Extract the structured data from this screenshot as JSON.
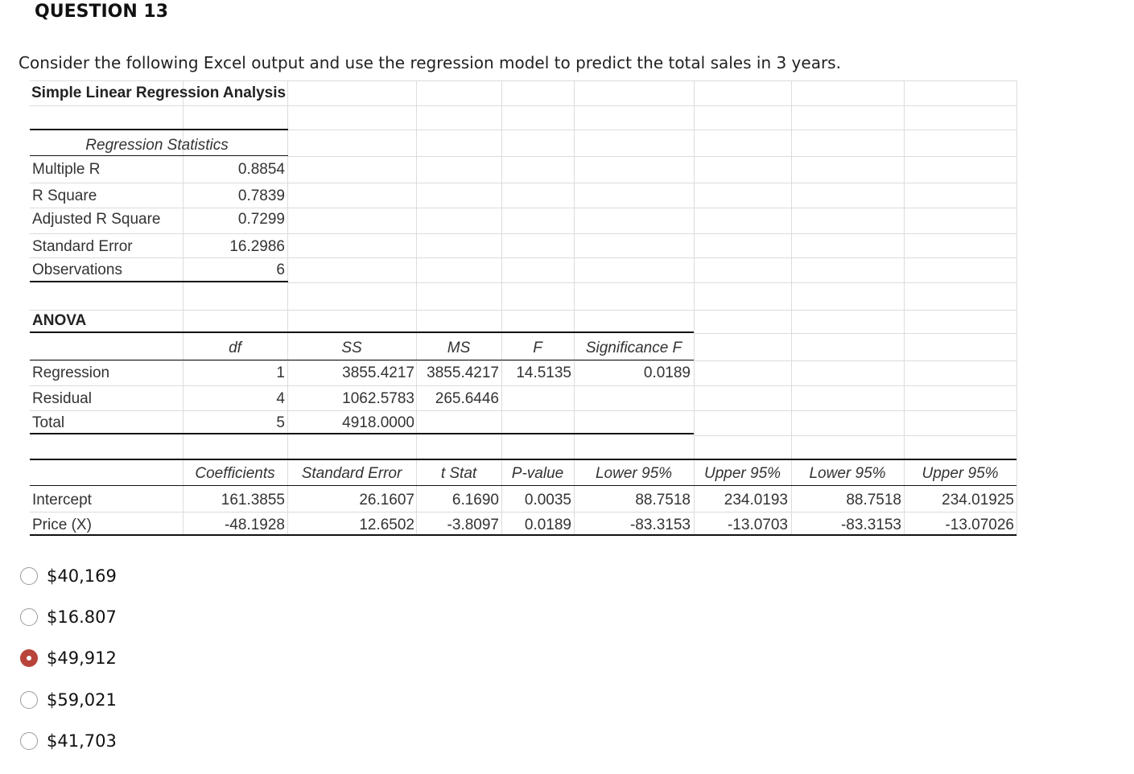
{
  "question": {
    "title": "QUESTION 13",
    "prompt": "Consider the following Excel output and use the regression model to predict the total sales in 3 years."
  },
  "sheet": {
    "title": "Simple Linear Regression Analysis",
    "regression_statistics": {
      "header": "Regression Statistics",
      "rows": [
        {
          "label": "Multiple R",
          "value": "0.8854"
        },
        {
          "label": "R Square",
          "value": "0.7839"
        },
        {
          "label": "Adjusted R Square",
          "value": "0.7299"
        },
        {
          "label": "Standard Error",
          "value": "16.2986"
        },
        {
          "label": "Observations",
          "value": "6"
        }
      ]
    },
    "anova": {
      "label": "ANOVA",
      "headers": [
        "df",
        "SS",
        "MS",
        "F",
        "Significance F"
      ],
      "rows": [
        {
          "label": "Regression",
          "df": "1",
          "ss": "3855.4217",
          "ms": "3855.4217",
          "f": "14.5135",
          "sig": "0.0189"
        },
        {
          "label": "Residual",
          "df": "4",
          "ss": "1062.5783",
          "ms": "265.6446",
          "f": "",
          "sig": ""
        },
        {
          "label": "Total",
          "df": "5",
          "ss": "4918.0000",
          "ms": "",
          "f": "",
          "sig": ""
        }
      ]
    },
    "coefficients": {
      "headers": [
        "Coefficients",
        "Standard Error",
        "t Stat",
        "P-value",
        "Lower 95%",
        "Upper 95%",
        "Lower 95%",
        "Upper 95%"
      ],
      "rows": [
        {
          "label": "Intercept",
          "values": [
            "161.3855",
            "26.1607",
            "6.1690",
            "0.0035",
            "88.7518",
            "234.0193",
            "88.7518",
            "234.01925"
          ]
        },
        {
          "label": "Price (X)",
          "values": [
            "-48.1928",
            "12.6502",
            "-3.8097",
            "0.0189",
            "-83.3153",
            "-13.0703",
            "-83.3153",
            "-13.07026"
          ]
        }
      ]
    }
  },
  "options": [
    {
      "label": "$40,169",
      "selected": false
    },
    {
      "label": "$16.807",
      "selected": false
    },
    {
      "label": "$49,912",
      "selected": true
    },
    {
      "label": "$59,021",
      "selected": false
    },
    {
      "label": "$41,703",
      "selected": false
    }
  ],
  "colors": {
    "selected_radio": "#b8443b"
  }
}
